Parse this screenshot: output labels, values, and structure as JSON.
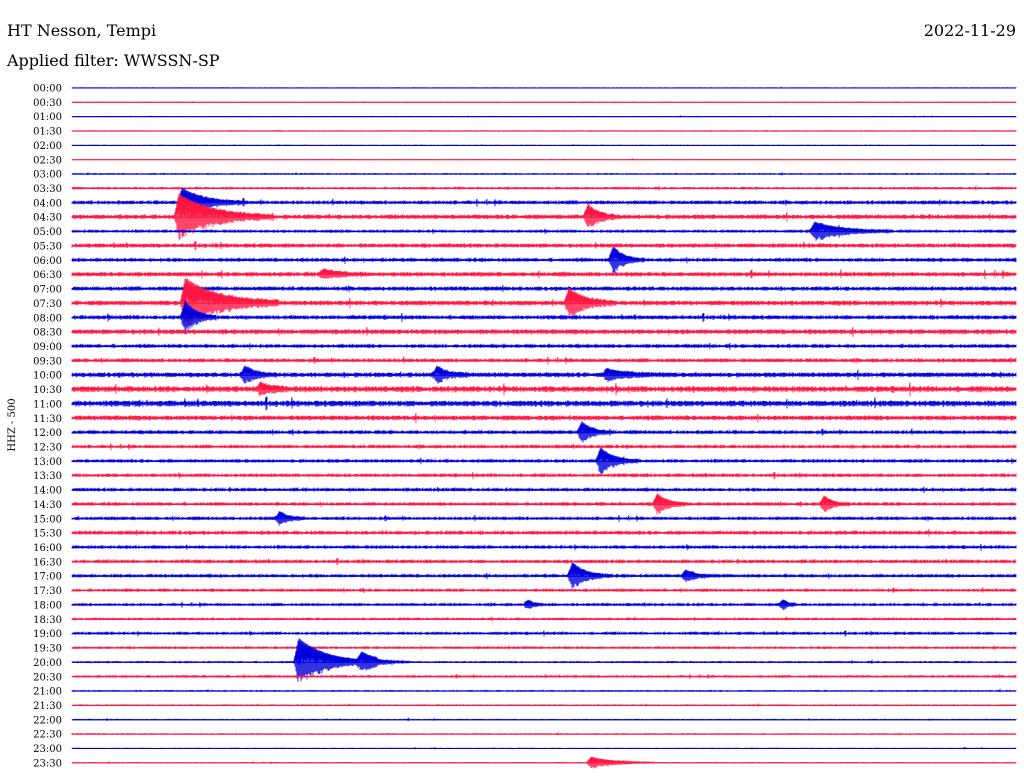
{
  "header": {
    "station": "HT Nesson, Tempi",
    "date": "2022-11-29",
    "filter": "Applied filter: WWSSN-SP"
  },
  "chart_data": {
    "type": "line",
    "channel_label": "HHZ - 500",
    "colors": [
      "#0000dd",
      "#ff1744"
    ],
    "x_range_minutes": [
      0,
      30
    ],
    "rows": [
      "00:00",
      "00:30",
      "01:00",
      "01:30",
      "02:00",
      "02:30",
      "03:00",
      "03:30",
      "04:00",
      "04:30",
      "05:00",
      "05:30",
      "06:00",
      "06:30",
      "07:00",
      "07:30",
      "08:00",
      "08:30",
      "09:00",
      "09:30",
      "10:00",
      "10:30",
      "11:00",
      "11:30",
      "12:00",
      "12:30",
      "13:00",
      "13:30",
      "14:00",
      "14:30",
      "15:00",
      "15:30",
      "16:00",
      "16:30",
      "17:00",
      "17:30",
      "18:00",
      "18:30",
      "19:00",
      "19:30",
      "20:00",
      "20:30",
      "21:00",
      "21:30",
      "22:00",
      "22:30",
      "23:00",
      "23:30"
    ],
    "noise_level": [
      0.3,
      0.3,
      0.3,
      0.4,
      0.3,
      0.3,
      0.6,
      1.0,
      1.6,
      2.0,
      1.2,
      1.8,
      1.6,
      2.0,
      1.8,
      2.2,
      1.8,
      2.2,
      1.6,
      1.6,
      2.2,
      2.8,
      2.8,
      2.2,
      1.6,
      1.4,
      1.4,
      1.4,
      1.4,
      1.4,
      1.4,
      1.6,
      1.4,
      1.4,
      1.4,
      1.2,
      1.2,
      1.0,
      1.2,
      1.0,
      0.8,
      1.0,
      0.6,
      0.6,
      0.5,
      0.5,
      0.4,
      0.4
    ],
    "events": [
      {
        "row": 8,
        "minute": 3.5,
        "amplitude": 14,
        "duration": 2
      },
      {
        "row": 9,
        "minute": 3.4,
        "amplitude": 22,
        "duration": 3
      },
      {
        "row": 9,
        "minute": 16.4,
        "amplitude": 12,
        "duration": 1
      },
      {
        "row": 10,
        "minute": 23.6,
        "amplitude": 9,
        "duration": 2.5
      },
      {
        "row": 12,
        "minute": 17.2,
        "amplitude": 13,
        "duration": 1
      },
      {
        "row": 13,
        "minute": 8.0,
        "amplitude": 5,
        "duration": 1.5
      },
      {
        "row": 15,
        "minute": 3.6,
        "amplitude": 24,
        "duration": 3
      },
      {
        "row": 15,
        "minute": 15.8,
        "amplitude": 14,
        "duration": 1.5
      },
      {
        "row": 16,
        "minute": 3.6,
        "amplitude": 16,
        "duration": 1
      },
      {
        "row": 20,
        "minute": 5.5,
        "amplitude": 8,
        "duration": 1
      },
      {
        "row": 20,
        "minute": 11.6,
        "amplitude": 8,
        "duration": 1
      },
      {
        "row": 20,
        "minute": 17.0,
        "amplitude": 5,
        "duration": 2
      },
      {
        "row": 21,
        "minute": 6.0,
        "amplitude": 6,
        "duration": 1
      },
      {
        "row": 24,
        "minute": 16.2,
        "amplitude": 10,
        "duration": 1
      },
      {
        "row": 26,
        "minute": 16.8,
        "amplitude": 13,
        "duration": 1.2
      },
      {
        "row": 29,
        "minute": 18.6,
        "amplitude": 10,
        "duration": 1
      },
      {
        "row": 29,
        "minute": 23.9,
        "amplitude": 8,
        "duration": 0.8
      },
      {
        "row": 30,
        "minute": 6.6,
        "amplitude": 7,
        "duration": 0.8
      },
      {
        "row": 34,
        "minute": 15.9,
        "amplitude": 13,
        "duration": 1.2
      },
      {
        "row": 34,
        "minute": 19.5,
        "amplitude": 6,
        "duration": 1
      },
      {
        "row": 36,
        "minute": 14.5,
        "amplitude": 5,
        "duration": 0.5
      },
      {
        "row": 36,
        "minute": 22.6,
        "amplitude": 5,
        "duration": 0.5
      },
      {
        "row": 40,
        "minute": 7.2,
        "amplitude": 24,
        "duration": 2.5
      },
      {
        "row": 40,
        "minute": 9.2,
        "amplitude": 8,
        "duration": 1.5
      },
      {
        "row": 47,
        "minute": 16.5,
        "amplitude": 6,
        "duration": 2
      }
    ]
  }
}
